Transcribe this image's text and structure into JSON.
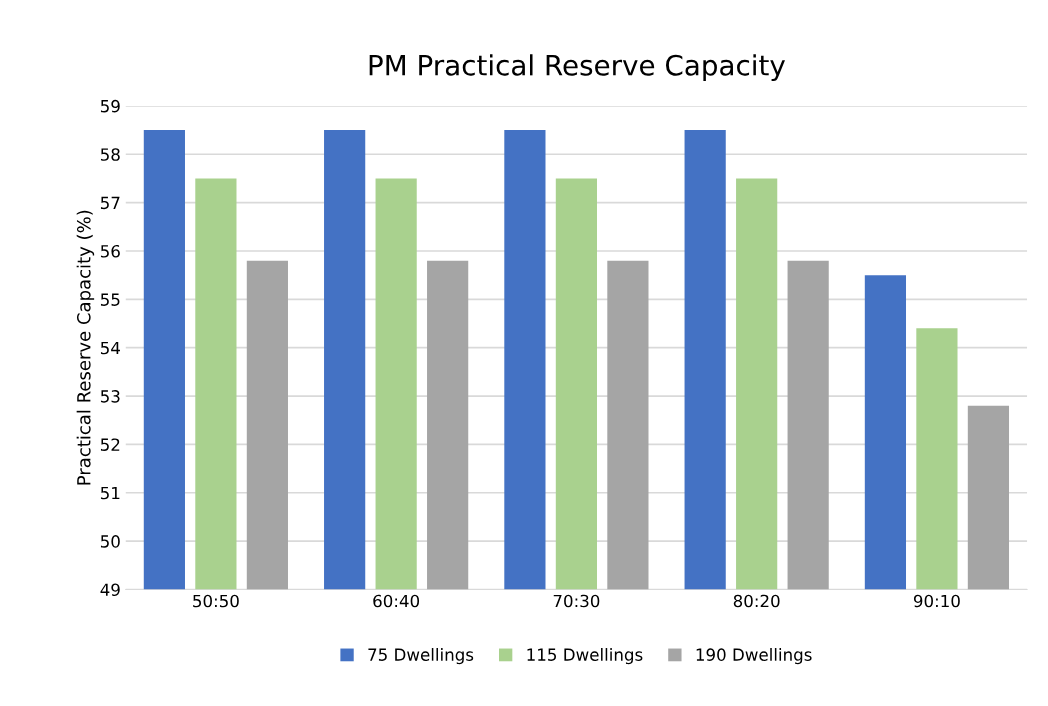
{
  "chart_data": {
    "type": "bar",
    "title": "PM Practical Reserve Capacity",
    "ylabel": "Practical Reserve Capacity (%)",
    "categories": [
      "50:50",
      "60:40",
      "70:30",
      "80:20",
      "90:10"
    ],
    "series": [
      {
        "name": "75 Dwellings",
        "color": "#4472c4",
        "values": [
          58.5,
          58.5,
          58.5,
          58.5,
          55.5
        ]
      },
      {
        "name": "115 Dwellings",
        "color": "#a9d18e",
        "values": [
          57.5,
          57.5,
          57.5,
          57.5,
          54.4
        ]
      },
      {
        "name": "190 Dwellings",
        "color": "#a5a5a5",
        "values": [
          55.8,
          55.8,
          55.8,
          55.8,
          52.8
        ]
      }
    ],
    "ylim": [
      49,
      59
    ],
    "yticks": [
      49,
      50,
      51,
      52,
      53,
      54,
      55,
      56,
      57,
      58,
      59
    ],
    "grid": "y",
    "legend": "bottom"
  }
}
